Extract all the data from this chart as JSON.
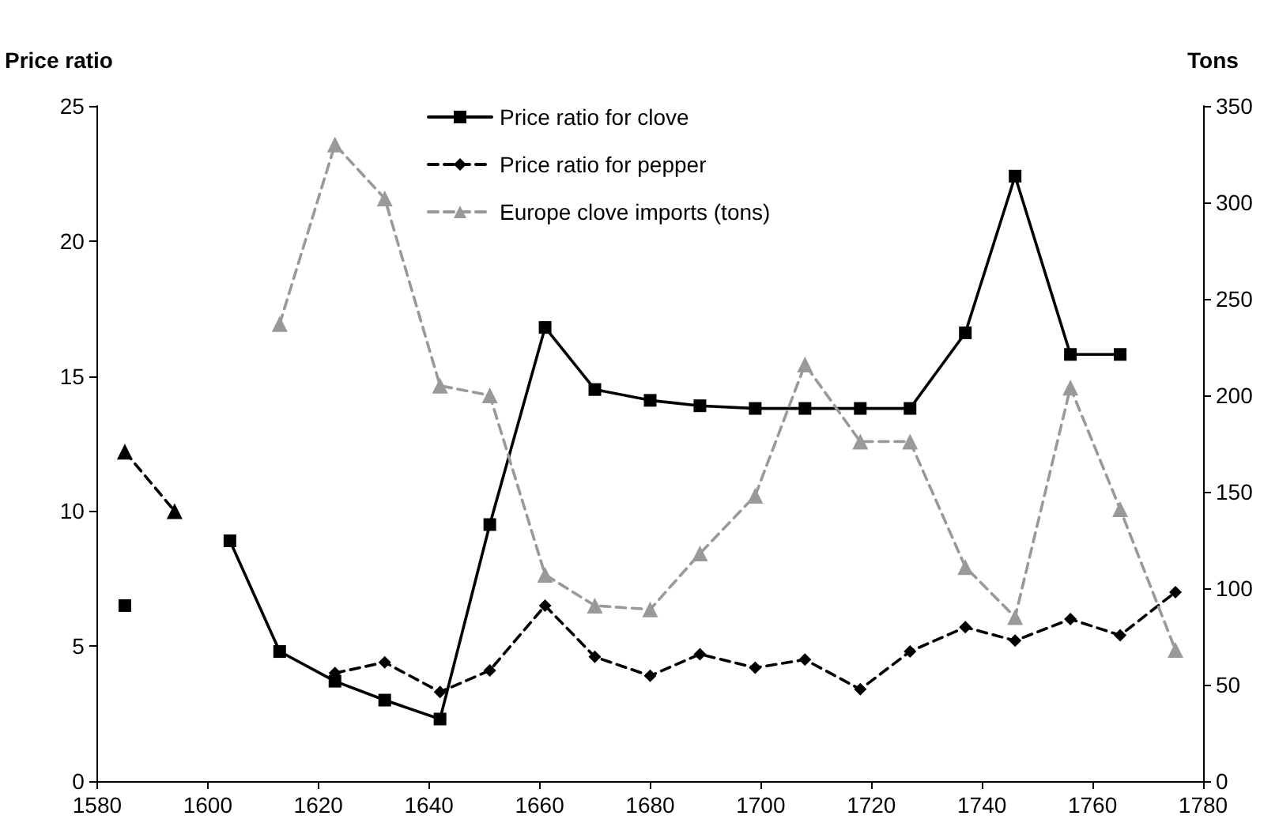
{
  "chart_data": {
    "type": "line",
    "ylabel": "Price ratio",
    "y2label": "Tons",
    "x": [
      1585,
      1594,
      1604,
      1613,
      1623,
      1632,
      1642,
      1651,
      1661,
      1670,
      1680,
      1689,
      1699,
      1708,
      1718,
      1727,
      1737,
      1746,
      1756,
      1765,
      1775
    ],
    "xlim": [
      1580,
      1780
    ],
    "xticks": [
      1580,
      1600,
      1620,
      1640,
      1660,
      1680,
      1700,
      1720,
      1740,
      1760,
      1780
    ],
    "ylim": [
      0,
      25
    ],
    "yticks": [
      0,
      5,
      10,
      15,
      20,
      25
    ],
    "y2lim": [
      0,
      350
    ],
    "y2ticks": [
      0,
      50,
      100,
      150,
      200,
      250,
      300,
      350
    ],
    "grid": false,
    "legend": "top",
    "series": [
      {
        "name": "Price ratio for clove",
        "color": "#000000",
        "marker": "square",
        "line_style": "solid",
        "values": [
          6.5,
          null,
          8.9,
          4.8,
          3.7,
          3.0,
          2.3,
          9.5,
          16.8,
          14.5,
          14.1,
          13.9,
          13.8,
          13.8,
          13.8,
          13.8,
          16.6,
          22.4,
          15.8,
          15.8,
          null
        ]
      },
      {
        "name": "Price ratio for pepper",
        "color": "#000000",
        "marker": "diamond",
        "line_style": "dashed",
        "values": [
          null,
          null,
          null,
          null,
          4.0,
          4.4,
          3.3,
          4.1,
          6.5,
          4.6,
          3.9,
          4.7,
          4.2,
          4.5,
          3.4,
          4.8,
          5.7,
          5.2,
          6.0,
          5.4,
          7.0
        ]
      },
      {
        "name": "Europe clove imports (tons)",
        "color": "#999999",
        "marker": "triangle",
        "line_style": "dashed",
        "axis": "y2",
        "values": [
          null,
          null,
          null,
          237,
          330,
          302,
          205,
          200,
          107,
          91,
          89,
          118,
          148,
          216,
          176,
          176,
          111,
          85,
          204,
          141,
          68
        ]
      },
      {
        "color": "#000000",
        "marker": "triangle",
        "line_style": "dashed",
        "values": [
          12.2,
          10.0,
          null,
          null,
          null,
          null,
          null,
          null,
          null,
          null,
          null,
          null,
          null,
          null,
          null,
          null,
          null,
          null,
          null,
          null,
          null
        ]
      }
    ]
  }
}
